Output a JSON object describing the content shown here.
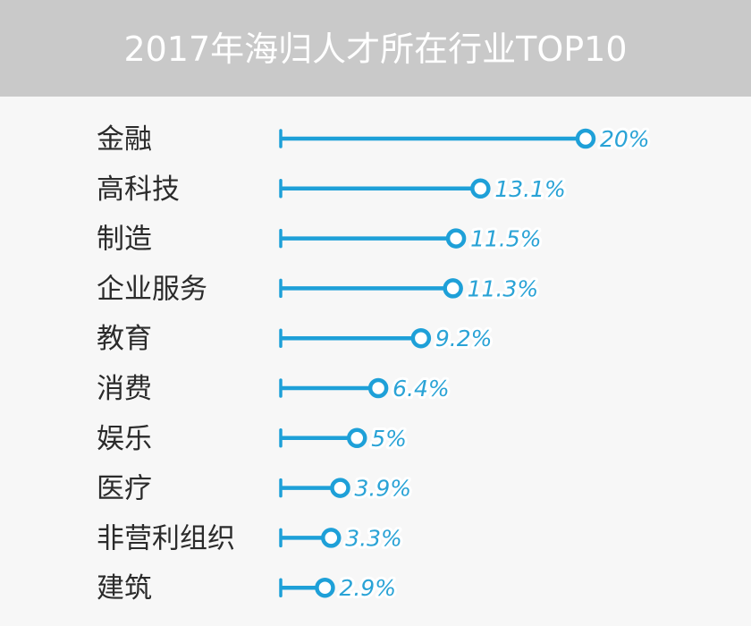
{
  "header": {
    "title": "2017年海归人才所在行业TOP10"
  },
  "colors": {
    "accent": "#1ea0d8",
    "header_bg": "#c9c9c9",
    "label_text": "#2b2b2b",
    "background": "#f7f7f7"
  },
  "chart_data": {
    "type": "bar",
    "orientation": "horizontal",
    "style": "lollipop",
    "title": "2017年海归人才所在行业TOP10",
    "categories": [
      "金融",
      "高科技",
      "制造",
      "企业服务",
      "教育",
      "消费",
      "娱乐",
      "医疗",
      "非营利组织",
      "建筑"
    ],
    "values": [
      20,
      13.1,
      11.5,
      11.3,
      9.2,
      6.4,
      5,
      3.9,
      3.3,
      2.9
    ],
    "value_labels": [
      "20%",
      "13.1%",
      "11.5%",
      "11.3%",
      "9.2%",
      "6.4%",
      "5%",
      "3.9%",
      "3.3%",
      "2.9%"
    ],
    "unit": "%",
    "xlim": [
      0,
      20
    ],
    "grid": false,
    "legend": "none"
  }
}
